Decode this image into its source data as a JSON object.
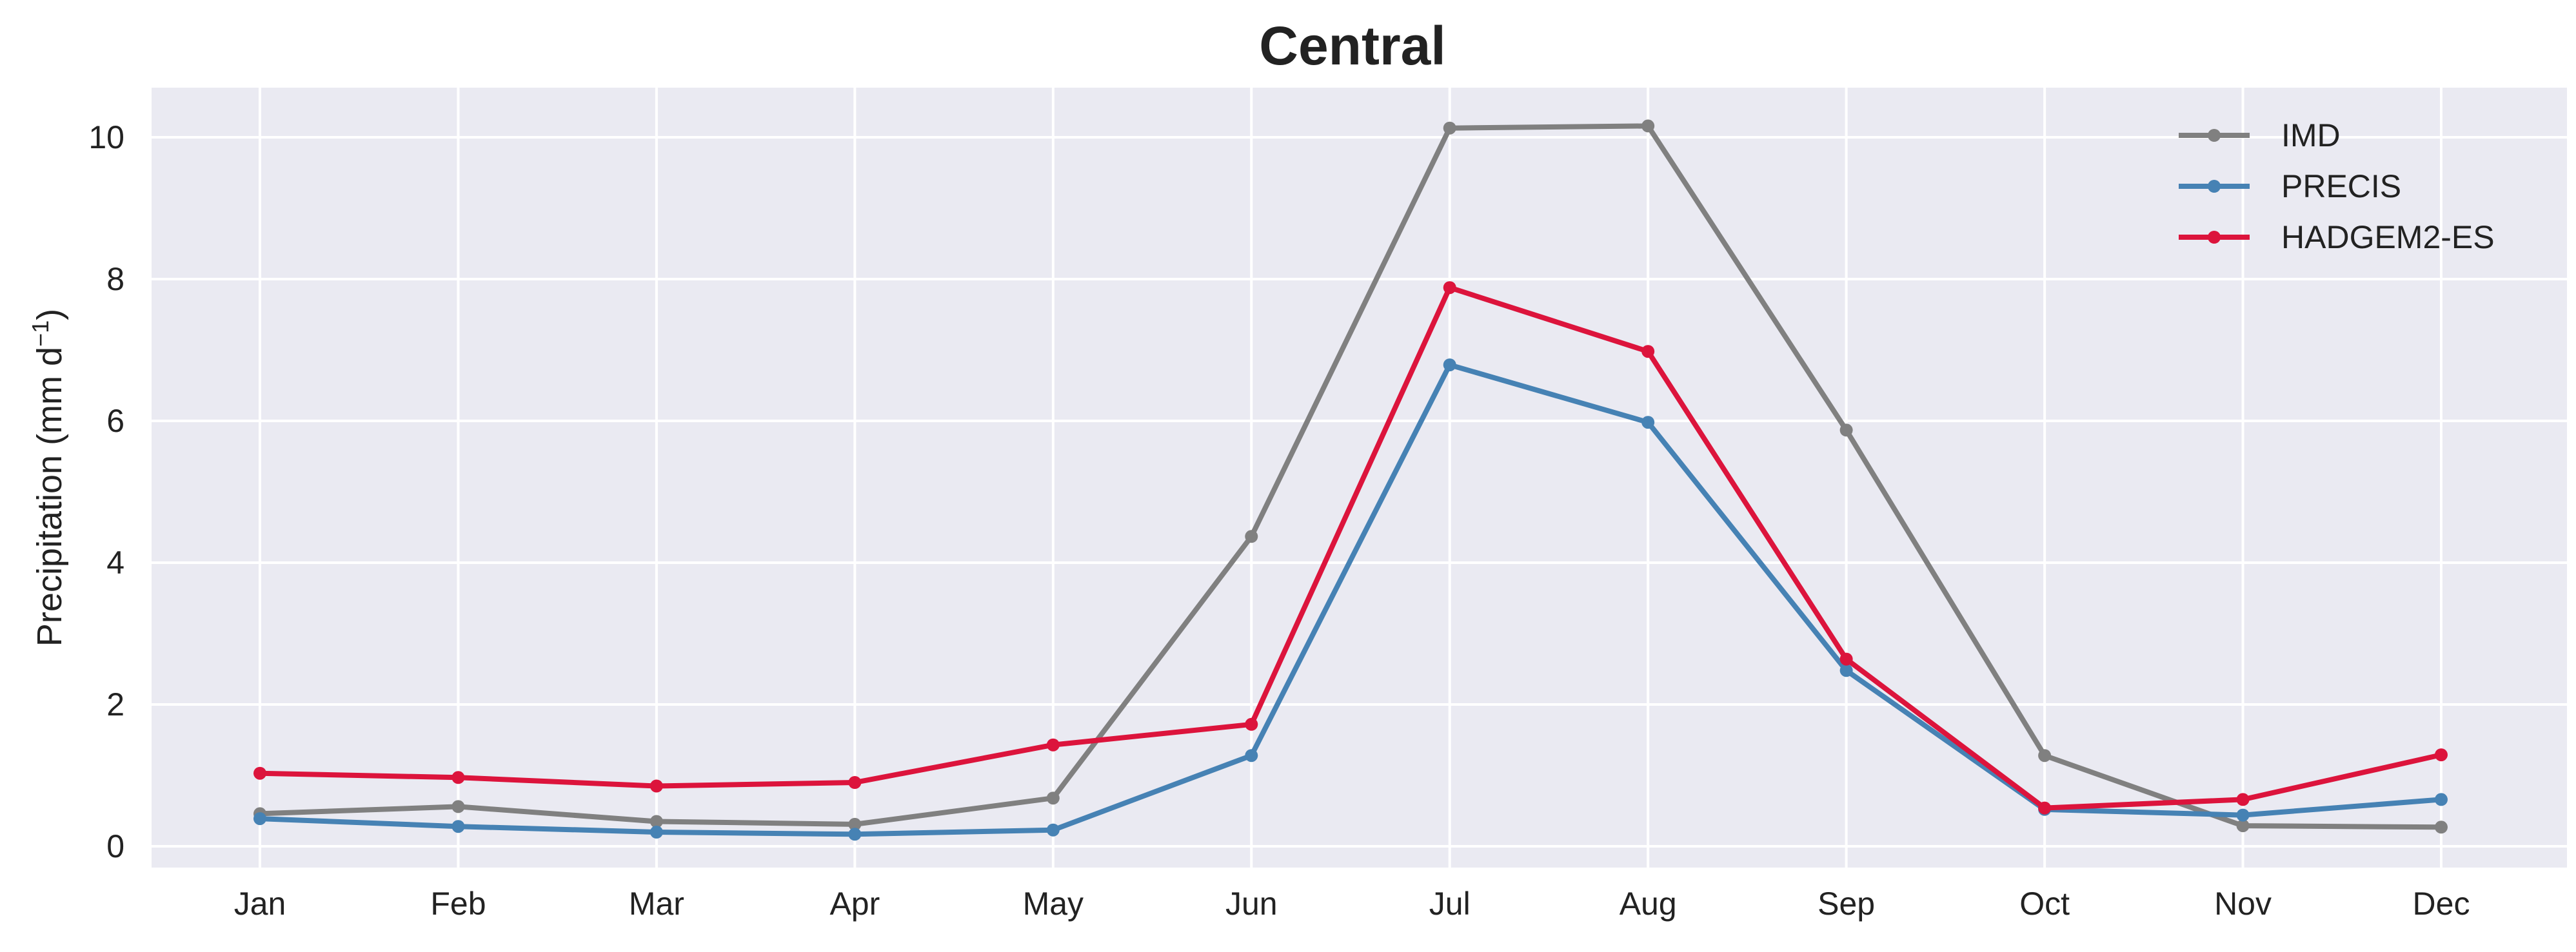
{
  "chart_data": {
    "type": "line",
    "title": "Central",
    "xlabel": "",
    "ylabel": "Precipitation (mm d",
    "ylabel_sup": "−1",
    "ylabel_close": ")",
    "categories": [
      "Jan",
      "Feb",
      "Mar",
      "Apr",
      "May",
      "Jun",
      "Jul",
      "Aug",
      "Sep",
      "Oct",
      "Nov",
      "Dec"
    ],
    "ylim": [
      -0.3,
      10.7
    ],
    "yticks": [
      0,
      2,
      4,
      6,
      8,
      10
    ],
    "grid": true,
    "legend_position": "top-right",
    "background_color": "#eaeaf2",
    "series": [
      {
        "name": "IMD",
        "color": "#808080",
        "values": [
          0.46,
          0.56,
          0.35,
          0.31,
          0.68,
          4.37,
          10.13,
          10.16,
          5.87,
          1.28,
          0.29,
          0.27
        ]
      },
      {
        "name": "PRECIS",
        "color": "#4682b4",
        "values": [
          0.39,
          0.28,
          0.2,
          0.17,
          0.23,
          1.28,
          6.79,
          5.98,
          2.48,
          0.52,
          0.44,
          0.66
        ]
      },
      {
        "name": "HADGEM2-ES",
        "color": "#dc143c",
        "values": [
          1.03,
          0.97,
          0.85,
          0.9,
          1.43,
          1.72,
          7.88,
          6.98,
          2.64,
          0.54,
          0.66,
          1.29
        ]
      }
    ]
  }
}
